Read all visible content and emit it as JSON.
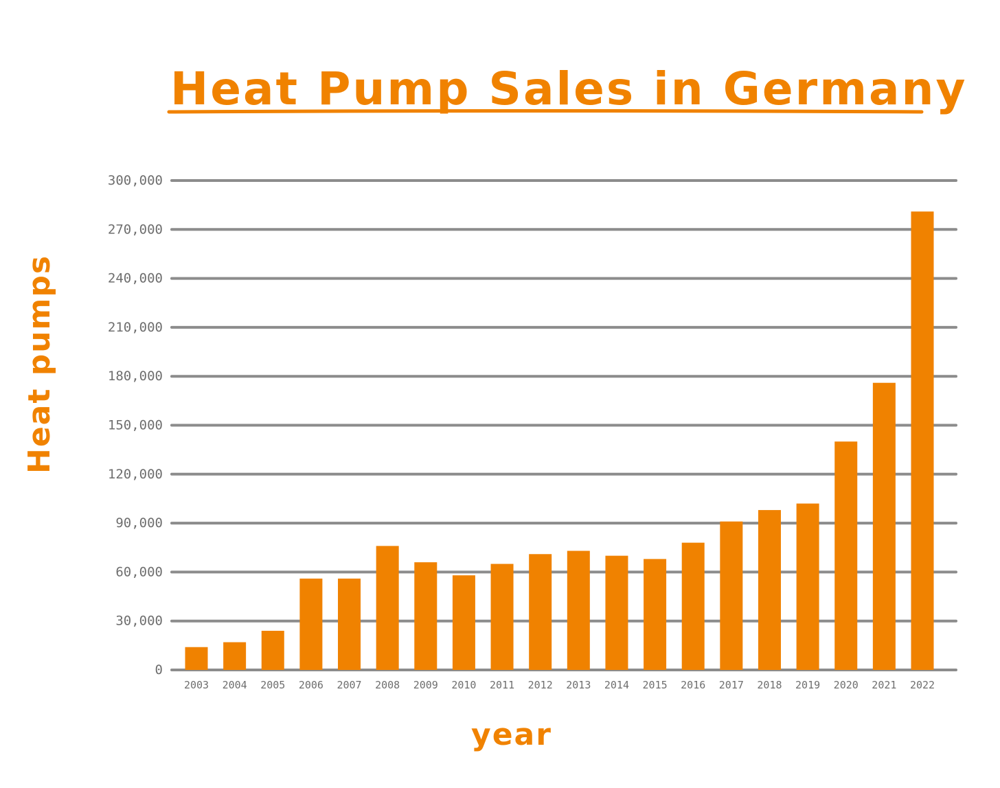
{
  "colors": {
    "accent": "#F08200",
    "grid": "#8c8c8c",
    "tick_text": "#6e6e6e",
    "background": "#ffffff"
  },
  "chart_data": {
    "type": "bar",
    "title": "Heat Pump Sales in Germany",
    "xlabel": "year",
    "ylabel": "Heat pumps",
    "ylim": [
      0,
      300000
    ],
    "yticks": [
      0,
      30000,
      60000,
      90000,
      120000,
      150000,
      180000,
      210000,
      240000,
      270000,
      300000
    ],
    "ytick_labels": [
      "0",
      "30,000",
      "60,000",
      "90,000",
      "120,000",
      "150,000",
      "180,000",
      "210,000",
      "240,000",
      "270,000",
      "300,000"
    ],
    "grid": true,
    "legend": "none",
    "categories": [
      "2003",
      "2004",
      "2005",
      "2006",
      "2007",
      "2008",
      "2009",
      "2010",
      "2011",
      "2012",
      "2013",
      "2014",
      "2015",
      "2016",
      "2017",
      "2018",
      "2019",
      "2020",
      "2021",
      "2022"
    ],
    "values": [
      14000,
      17000,
      24000,
      56000,
      56000,
      76000,
      66000,
      58000,
      65000,
      71000,
      73000,
      70000,
      68000,
      78000,
      91000,
      98000,
      102000,
      140000,
      176000,
      281000
    ]
  }
}
